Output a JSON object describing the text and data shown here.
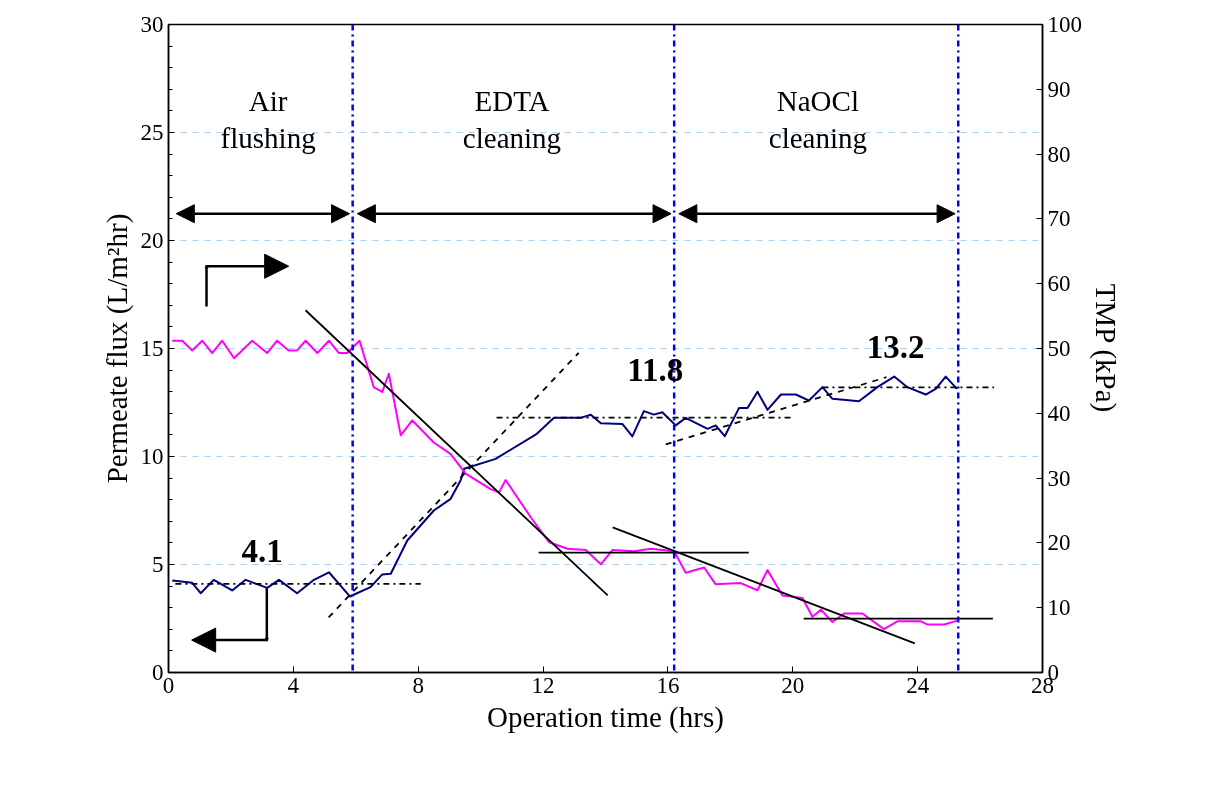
{
  "chart_data": {
    "type": "line",
    "xlabel": "Operation time (hrs)",
    "ylabel": "Permeate flux (L/m²hr)",
    "y2label": "TMP (kPa)",
    "xlim": [
      0,
      28
    ],
    "xticks": [
      0,
      4,
      8,
      12,
      16,
      20,
      24,
      28
    ],
    "ylim": [
      0,
      30
    ],
    "yticks": [
      0,
      5,
      10,
      15,
      20,
      25,
      30
    ],
    "y2lim": [
      0,
      100
    ],
    "y2ticks": [
      0,
      10,
      20,
      30,
      40,
      50,
      60,
      70,
      80,
      90,
      100
    ],
    "grid": "y",
    "marker": "none",
    "line_style": "solid",
    "series": [
      {
        "color": "#000080",
        "x": [
          0.12,
          0.76,
          1.03,
          1.45,
          2.04,
          2.47,
          3.16,
          3.54,
          4.12,
          4.66,
          5.14,
          5.81,
          6.47,
          6.85,
          7.12,
          7.65,
          8.5,
          9.04,
          9.36,
          9.47,
          10.48,
          11.8,
          12.35,
          13.2,
          13.53,
          13.85,
          14.54,
          14.86,
          15.23,
          15.55,
          15.82,
          16.25,
          16.57,
          17.27,
          17.53,
          17.82,
          18.28,
          18.55,
          18.87,
          19.19,
          19.62,
          20.1,
          20.52,
          20.95,
          21.27,
          21.7,
          22.12,
          22.71,
          23.25,
          23.67,
          24.26,
          24.58,
          24.9,
          25.26
        ],
        "values": [
          4.26,
          4.15,
          3.67,
          4.29,
          3.8,
          4.29,
          3.92,
          4.29,
          3.67,
          4.29,
          4.64,
          3.52,
          3.95,
          4.54,
          4.57,
          6.11,
          7.5,
          8.04,
          8.9,
          9.43,
          9.89,
          11.05,
          11.79,
          11.79,
          11.93,
          11.54,
          11.51,
          10.93,
          12.1,
          11.94,
          12.05,
          11.44,
          11.79,
          11.28,
          11.44,
          10.94,
          12.25,
          12.25,
          13.0,
          12.16,
          12.87,
          12.87,
          12.59,
          13.21,
          12.67,
          12.62,
          12.56,
          13.21,
          13.7,
          13.21,
          12.87,
          13.13,
          13.7,
          13.13
        ]
      },
      {
        "color": "#ff00ff",
        "axis": "y2",
        "x": [
          0.12,
          0.44,
          0.76,
          1.08,
          1.4,
          1.72,
          2.1,
          2.68,
          3.16,
          3.48,
          3.85,
          4.12,
          4.39,
          4.77,
          5.14,
          5.46,
          5.73,
          6.12,
          6.58,
          6.85,
          7.06,
          7.44,
          7.81,
          8.5,
          9.04,
          9.52,
          10.32,
          10.59,
          10.8,
          11.6,
          12.19,
          12.78,
          13.37,
          13.85,
          14.22,
          14.92,
          15.45,
          16.2,
          16.57,
          17.16,
          17.53,
          18.33,
          18.87,
          19.19,
          19.67,
          20.31,
          20.63,
          20.9,
          21.27,
          21.64,
          22.23,
          22.92,
          23.35,
          24.1,
          24.32,
          24.85,
          25.27
        ],
        "values": [
          51.2,
          51.2,
          49.7,
          51.2,
          49.3,
          51.2,
          48.5,
          51.2,
          49.3,
          51.2,
          49.7,
          49.7,
          51.2,
          49.3,
          51.2,
          49.3,
          49.3,
          51.2,
          44.0,
          43.3,
          46.1,
          36.6,
          38.9,
          35.5,
          33.7,
          30.7,
          28.3,
          27.8,
          29.7,
          24.0,
          20.1,
          19.1,
          18.9,
          16.7,
          18.9,
          18.7,
          19.1,
          18.7,
          15.4,
          16.2,
          13.6,
          13.8,
          12.7,
          15.8,
          11.9,
          11.5,
          8.6,
          9.7,
          7.8,
          9.1,
          9.1,
          6.7,
          7.9,
          7.9,
          7.4,
          7.4,
          8.0
        ]
      },
      {
        "color": "#000000",
        "line_style": "dashdot",
        "x": [
          0.22,
          8.08
        ],
        "values": [
          4.1,
          4.1
        ]
      },
      {
        "color": "#000000",
        "line_style": "dashed",
        "x": [
          5.13,
          13.14
        ],
        "values": [
          2.55,
          14.8
        ]
      },
      {
        "color": "#000000",
        "line_style": "dashdot",
        "x": [
          10.51,
          20.03
        ],
        "values": [
          11.8,
          11.8
        ]
      },
      {
        "color": "#000000",
        "line_style": "dashed",
        "x": [
          15.93,
          23.0
        ],
        "values": [
          10.56,
          13.67
        ]
      },
      {
        "color": "#000000",
        "line_style": "dashdot",
        "x": [
          20.95,
          26.45
        ],
        "values": [
          13.2,
          13.2
        ]
      },
      {
        "color": "#000000",
        "axis": "y2",
        "x": [
          4.39,
          14.07
        ],
        "values": [
          55.9,
          11.9
        ]
      },
      {
        "color": "#000000",
        "axis": "y2",
        "x": [
          14.23,
          23.91
        ],
        "values": [
          22.4,
          4.5
        ]
      },
      {
        "color": "#000000",
        "axis": "y2",
        "x": [
          11.86,
          18.59
        ],
        "values": [
          18.5,
          18.5
        ]
      },
      {
        "color": "#000000",
        "axis": "y2",
        "x": [
          20.35,
          26.41
        ],
        "values": [
          8.3,
          8.3
        ]
      }
    ],
    "ref_lines": [
      {
        "axis": "x",
        "value": 5.9,
        "color": "#0000ff",
        "line_style": "dashdot"
      },
      {
        "axis": "x",
        "value": 16.2,
        "color": "#0000ff",
        "line_style": "dashdot"
      },
      {
        "axis": "x",
        "value": 25.3,
        "color": "#0000ff",
        "line_style": "dashdot"
      }
    ],
    "annotations": [
      "Air\nflushing",
      "EDTA\ncleaning",
      "NaOCl\ncleaning",
      "4.1",
      "11.8",
      "13.2"
    ]
  }
}
